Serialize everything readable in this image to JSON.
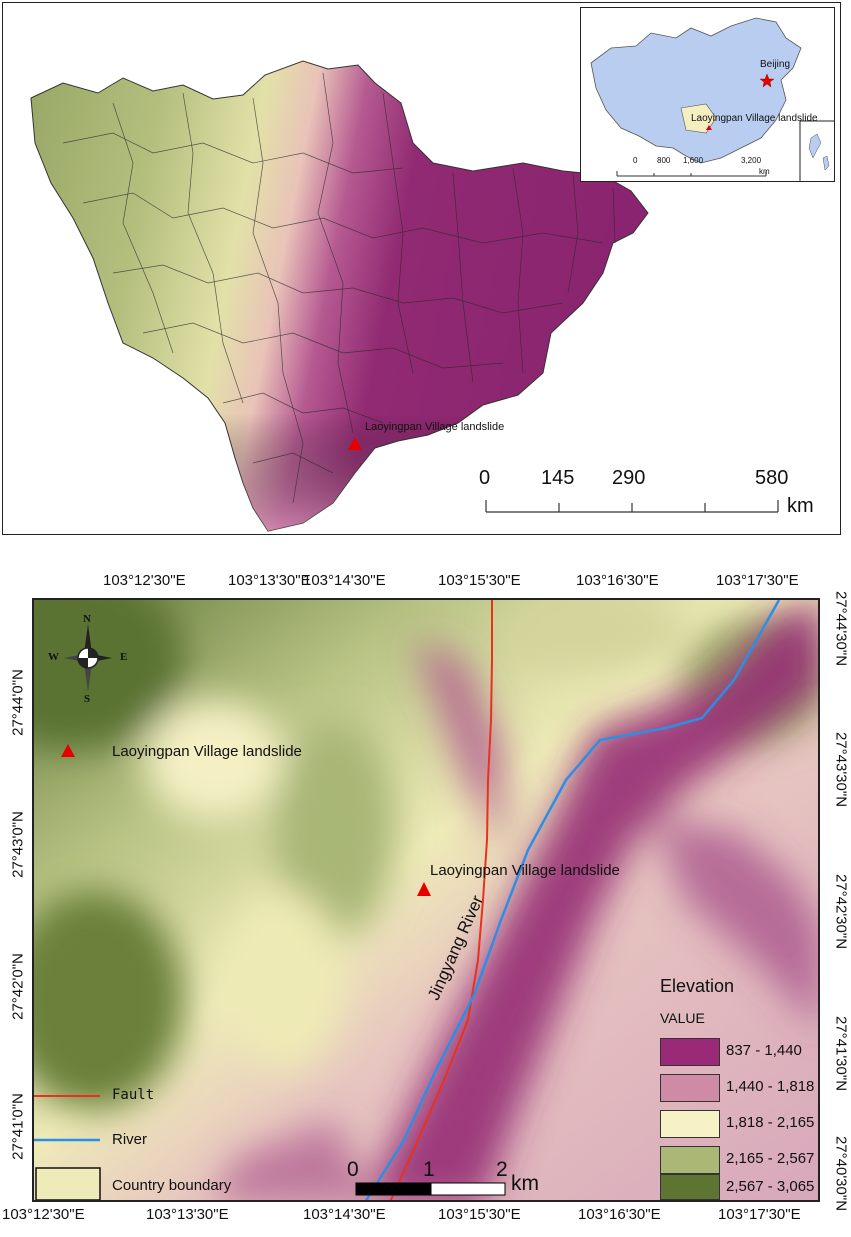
{
  "top_map": {
    "landslide_label": "Laoyingpan Village landslide",
    "scale_ticks": [
      "0",
      "145",
      "290",
      "580"
    ],
    "scale_unit": "km"
  },
  "inset_map": {
    "beijing_label": "Beijing",
    "landslide_label": "Laoyingpan Village landslide",
    "scale_ticks": [
      "0",
      "800",
      "1,600",
      "3,200"
    ],
    "scale_unit": "km"
  },
  "bottom_map": {
    "top_longitudes": [
      "103°12'30\"E",
      "103°13'30\"E",
      "103°14'30\"E",
      "103°15'30\"E",
      "103°16'30\"E",
      "103°17'30\"E"
    ],
    "bottom_longitudes": [
      "103°12'30\"E",
      "103°13'30\"E",
      "103°14'30\"E",
      "103°15'30\"E",
      "103°16'30\"E",
      "103°17'30\"E"
    ],
    "left_latitudes": [
      "27°44'0\"N",
      "27°43'0\"N",
      "27°42'0\"N",
      "27°41'0\"N"
    ],
    "right_latitudes": [
      "27°44'30\"N",
      "27°43'30\"N",
      "27°42'30\"N",
      "27°41'30\"N",
      "27°40'30\"N"
    ],
    "landslide_label": "Laoyingpan Village landslide",
    "river_label": "Jingyang River",
    "north_arrow": {
      "n": "N",
      "s": "S",
      "e": "E",
      "w": "W"
    },
    "scale_ticks": [
      "0",
      "1",
      "2"
    ],
    "scale_unit": "km",
    "legend": {
      "landslide": "Laoyingpan Village landslide",
      "fault": "Fault",
      "river": "River",
      "boundary": "Country boundary"
    },
    "elevation_legend": {
      "title": "Elevation",
      "subtitle": "VALUE",
      "classes": [
        {
          "label": "837 - 1,440",
          "color": "#9a2a78"
        },
        {
          "label": "1,440 - 1,818",
          "color": "#cf8ba6"
        },
        {
          "label": "1,818 - 2,165",
          "color": "#f7f2c6"
        },
        {
          "label": "2,165 - 2,567",
          "color": "#aab775"
        },
        {
          "label": "2,567 - 3,065",
          "color": "#5e7532"
        }
      ]
    }
  },
  "colors": {
    "fault": "#e8331c",
    "river": "#2b8fe6",
    "marker": "#e60000",
    "inset_land": "#b9cdf0"
  }
}
